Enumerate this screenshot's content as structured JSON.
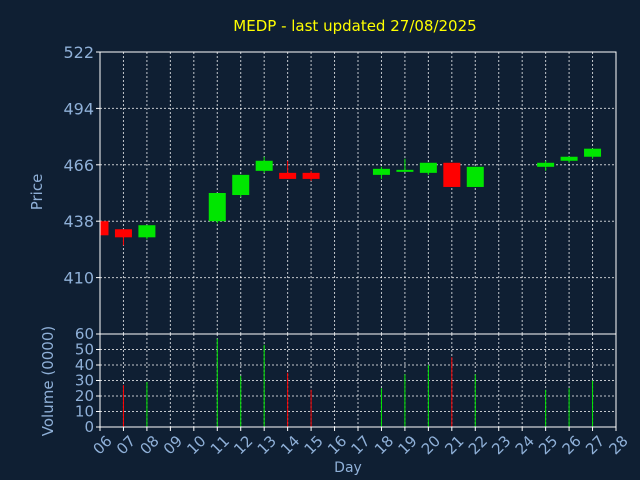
{
  "chart_data": {
    "type": "candlestick",
    "title": "MEDP - last updated 27/08/2025",
    "xlabel": "Day",
    "price_panel": {
      "ylabel": "Price",
      "ylim": [
        382,
        522
      ],
      "yticks": [
        410,
        438,
        466,
        494,
        522
      ],
      "grid": true
    },
    "volume_panel": {
      "ylabel": "Volume (0000)",
      "ylim": [
        0,
        60
      ],
      "yticks": [
        0,
        10,
        20,
        30,
        40,
        50,
        60
      ],
      "grid": true
    },
    "x_range": [
      6,
      28
    ],
    "x_ticks": [
      "06",
      "07",
      "08",
      "09",
      "10",
      "11",
      "12",
      "13",
      "14",
      "15",
      "16",
      "17",
      "18",
      "19",
      "20",
      "21",
      "22",
      "23",
      "24",
      "25",
      "26",
      "27",
      "28"
    ],
    "candles": [
      {
        "day": 6,
        "open": 438,
        "high": 439,
        "low": 431,
        "close": 431,
        "volume": 0
      },
      {
        "day": 7,
        "open": 434,
        "high": 434,
        "low": 426,
        "close": 430,
        "volume": 27
      },
      {
        "day": 8,
        "open": 430,
        "high": 436,
        "low": 429,
        "close": 436,
        "volume": 29
      },
      {
        "day": 11,
        "open": 438,
        "high": 452,
        "low": 437,
        "close": 452,
        "volume": 57
      },
      {
        "day": 12,
        "open": 451,
        "high": 461,
        "low": 450,
        "close": 461,
        "volume": 33
      },
      {
        "day": 13,
        "open": 463,
        "high": 470,
        "low": 462,
        "close": 468,
        "volume": 53
      },
      {
        "day": 14,
        "open": 462,
        "high": 468,
        "low": 459,
        "close": 459,
        "volume": 35
      },
      {
        "day": 15,
        "open": 462,
        "high": 463,
        "low": 458,
        "close": 459,
        "volume": 24
      },
      {
        "day": 18,
        "open": 461,
        "high": 465,
        "low": 459,
        "close": 464,
        "volume": 25
      },
      {
        "day": 19,
        "open": 463,
        "high": 469,
        "low": 463,
        "close": 463,
        "volume": 34
      },
      {
        "day": 20,
        "open": 462,
        "high": 467,
        "low": 461,
        "close": 467,
        "volume": 40
      },
      {
        "day": 21,
        "open": 467,
        "high": 467,
        "low": 455,
        "close": 455,
        "volume": 45
      },
      {
        "day": 22,
        "open": 455,
        "high": 465,
        "low": 455,
        "close": 465,
        "volume": 34
      },
      {
        "day": 25,
        "open": 465,
        "high": 468,
        "low": 463,
        "close": 467,
        "volume": 24
      },
      {
        "day": 26,
        "open": 468,
        "high": 470,
        "low": 467,
        "close": 470,
        "volume": 25
      },
      {
        "day": 27,
        "open": 470,
        "high": 474,
        "low": 469,
        "close": 474,
        "volume": 30
      }
    ],
    "colors": {
      "up": "#00e600",
      "down": "#ff0000",
      "title": "#ffff00",
      "axis_text": "#8fb0d8",
      "frame": "#ffffff",
      "grid": "#ffffff",
      "background": "#0f1f33"
    }
  }
}
